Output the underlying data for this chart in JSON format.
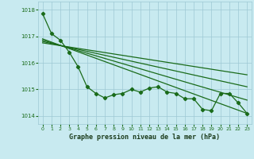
{
  "title": "Graphe pression niveau de la mer (hPa)",
  "bg_color": "#c8eaf0",
  "grid_color": "#9ec8d4",
  "line_color": "#1a6b1a",
  "xlim": [
    -0.5,
    23.5
  ],
  "ylim": [
    1013.7,
    1018.3
  ],
  "yticks": [
    1014,
    1015,
    1016,
    1017,
    1018
  ],
  "xticks": [
    0,
    1,
    2,
    3,
    4,
    5,
    6,
    7,
    8,
    9,
    10,
    11,
    12,
    13,
    14,
    15,
    16,
    17,
    18,
    19,
    20,
    21,
    22,
    23
  ],
  "series": [
    {
      "x": [
        0,
        1,
        2,
        3,
        4,
        5,
        6,
        7,
        8,
        9,
        10,
        11,
        12,
        13,
        14,
        15,
        16,
        17,
        18,
        19,
        20,
        21,
        22,
        23
      ],
      "y": [
        1017.85,
        1017.1,
        1016.85,
        1016.4,
        1015.85,
        1015.1,
        1014.85,
        1014.68,
        1014.8,
        1014.85,
        1015.0,
        1014.9,
        1015.05,
        1015.1,
        1014.9,
        1014.85,
        1014.65,
        1014.65,
        1014.25,
        1014.2,
        1014.85,
        1014.85,
        1014.5,
        1014.1
      ],
      "marker": true
    },
    {
      "x": [
        0,
        23
      ],
      "y": [
        1016.9,
        1014.1
      ],
      "marker": false
    },
    {
      "x": [
        0,
        23
      ],
      "y": [
        1016.85,
        1014.6
      ],
      "marker": false
    },
    {
      "x": [
        0,
        23
      ],
      "y": [
        1016.8,
        1015.1
      ],
      "marker": false
    },
    {
      "x": [
        0,
        23
      ],
      "y": [
        1016.75,
        1015.55
      ],
      "marker": false
    }
  ]
}
